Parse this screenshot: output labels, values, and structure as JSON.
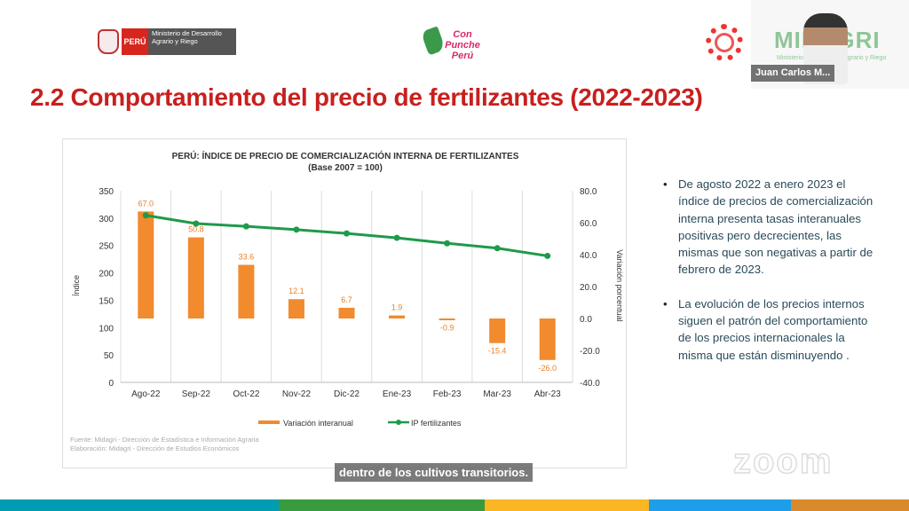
{
  "header": {
    "peru_label": "PERÚ",
    "ministry": "Ministerio de Desarrollo Agrario y Riego",
    "campaign": "Con Punche Perú",
    "midagri": "MIDAGRI",
    "midagri_sub": "Ministerio de Desarrollo Agrario y Riego"
  },
  "video": {
    "participant_name": "Juan Carlos M..."
  },
  "slide_title": "2.2 Comportamiento del precio de fertilizantes (2022-2023)",
  "chart_data": {
    "type": "bar+line",
    "title": "PERÚ: ÍNDICE DE PRECIO DE COMERCIALIZACIÓN INTERNA DE FERTILIZANTES",
    "subtitle": "(Base 2007 = 100)",
    "categories": [
      "Ago-22",
      "Sep-22",
      "Oct-22",
      "Nov-22",
      "Dic-22",
      "Ene-23",
      "Feb-23",
      "Mar-23",
      "Abr-23"
    ],
    "ylabel": "Índice",
    "ylabel_right": "Variación porcentual",
    "ylim": [
      0,
      350
    ],
    "yticks": [
      "0",
      "50",
      "100",
      "150",
      "200",
      "250",
      "300",
      "350"
    ],
    "ylim_right": [
      -40,
      80
    ],
    "yticks_right": [
      "-40.0",
      "-20.0",
      "0.0",
      "20.0",
      "40.0",
      "60.0",
      "80.0"
    ],
    "series": [
      {
        "name": "Variación interanual",
        "axis": "right",
        "kind": "bar",
        "color": "#f28a2e",
        "values": [
          67.0,
          50.8,
          33.6,
          12.1,
          6.7,
          1.9,
          -0.9,
          -15.4,
          -26.0
        ],
        "labels": [
          "67.0",
          "50.8",
          "33.6",
          "12.1",
          "6.7",
          "1.9",
          "-0.9",
          "-15.4",
          "-26.0"
        ]
      },
      {
        "name": "IP fertilizantes",
        "axis": "left",
        "kind": "line",
        "color": "#1e9a4a",
        "values": [
          305,
          290,
          285,
          279,
          272,
          264,
          254,
          245,
          231
        ]
      }
    ],
    "legend": "bottom",
    "grid": "vertical",
    "source": "Fuente: Midagri - Dirección de Estadística e Información Agraria",
    "elaboration": "Elaboración: Midagri - Dirección de Estudios Económicos"
  },
  "bullets": [
    "De agosto 2022 a enero 2023 el índice de precios de comercialización interna presenta tasas interanuales positivas pero decrecientes, las mismas que son negativas a partir de febrero de 2023.",
    "La evolución de los precios internos siguen el patrón del comportamiento de los precios internacionales la misma que están disminuyendo ."
  ],
  "caption": "dentro de los cultivos transitorios.",
  "watermark": "zoom",
  "footer_colors": [
    "#009cb4",
    "#3a9a3e",
    "#fbb623",
    "#1e9ee8",
    "#d98a2a"
  ]
}
